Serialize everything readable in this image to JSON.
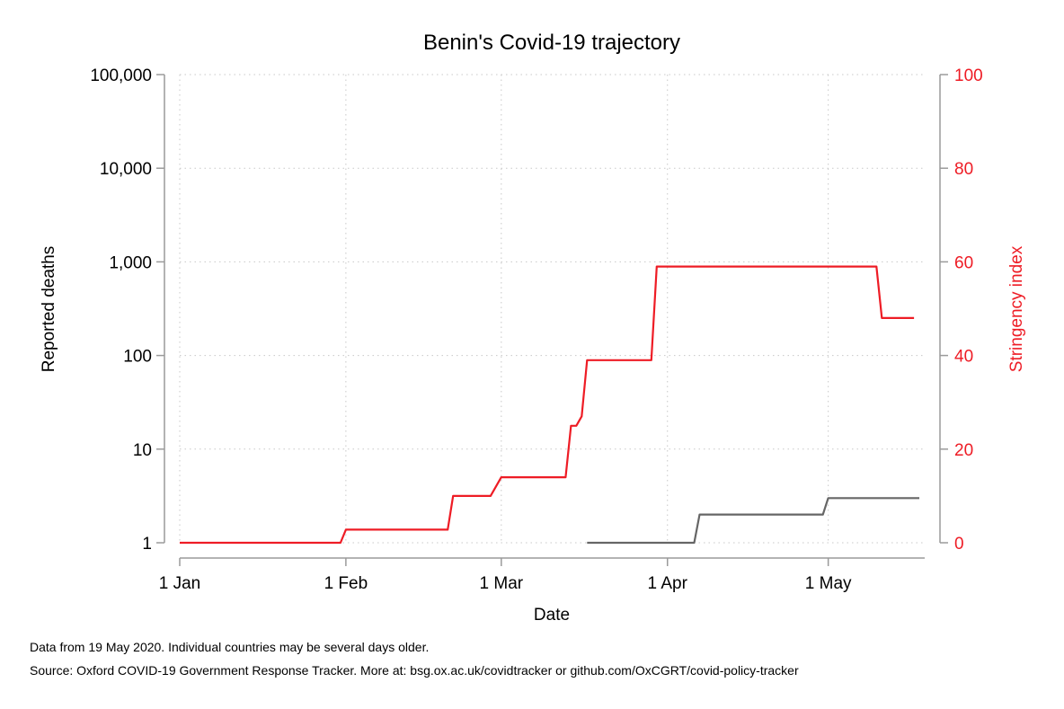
{
  "chart_data": {
    "type": "line",
    "title": "Benin's Covid-19 trajectory",
    "xlabel": "Date",
    "ylabel_left": "Reported deaths",
    "ylabel_right": "Stringency index",
    "x_ticks": [
      "1 Jan",
      "1 Feb",
      "1 Mar",
      "1 Apr",
      "1 May"
    ],
    "x_tick_dates": [
      "2020-01-01",
      "2020-02-01",
      "2020-03-01",
      "2020-04-01",
      "2020-05-01"
    ],
    "xlim": [
      "2020-01-01",
      "2020-05-19"
    ],
    "y_left_scale": "log",
    "y_left_ticks": [
      1,
      10,
      100,
      1000,
      10000,
      100000
    ],
    "y_left_tick_labels": [
      "1",
      "10",
      "100",
      "1,000",
      "10,000",
      "100,000"
    ],
    "y_left_lim": [
      1,
      100000
    ],
    "y_right_ticks": [
      0,
      20,
      40,
      60,
      80,
      100
    ],
    "y_right_tick_labels": [
      "0",
      "20",
      "40",
      "60",
      "80",
      "100"
    ],
    "y_right_lim": [
      0,
      100
    ],
    "grid": true,
    "series": [
      {
        "name": "Reported deaths",
        "axis": "left",
        "color": "#666666",
        "points": [
          {
            "date": "2020-03-17",
            "y": 1
          },
          {
            "date": "2020-04-06",
            "y": 1
          },
          {
            "date": "2020-04-07",
            "y": 2
          },
          {
            "date": "2020-04-30",
            "y": 2
          },
          {
            "date": "2020-05-01",
            "y": 3
          },
          {
            "date": "2020-05-18",
            "y": 3
          }
        ]
      },
      {
        "name": "Stringency index",
        "axis": "right",
        "color": "#ee1c25",
        "points": [
          {
            "date": "2020-01-01",
            "y": 0
          },
          {
            "date": "2020-01-31",
            "y": 0
          },
          {
            "date": "2020-02-01",
            "y": 2.8
          },
          {
            "date": "2020-02-20",
            "y": 2.8
          },
          {
            "date": "2020-02-21",
            "y": 10
          },
          {
            "date": "2020-02-28",
            "y": 10
          },
          {
            "date": "2020-03-01",
            "y": 14
          },
          {
            "date": "2020-03-13",
            "y": 14
          },
          {
            "date": "2020-03-14",
            "y": 25
          },
          {
            "date": "2020-03-15",
            "y": 25
          },
          {
            "date": "2020-03-16",
            "y": 27
          },
          {
            "date": "2020-03-17",
            "y": 39
          },
          {
            "date": "2020-03-29",
            "y": 39
          },
          {
            "date": "2020-03-30",
            "y": 59
          },
          {
            "date": "2020-05-10",
            "y": 59
          },
          {
            "date": "2020-05-11",
            "y": 48
          },
          {
            "date": "2020-05-17",
            "y": 48
          }
        ]
      }
    ]
  },
  "notes": {
    "line1": "Data from 19 May 2020. Individual countries may be several days older.",
    "line2": "Source: Oxford COVID-19 Government Response Tracker. More at: bsg.ox.ac.uk/covidtracker or github.com/OxCGRT/covid-policy-tracker"
  },
  "colors": {
    "deaths": "#666666",
    "stringency": "#ee1c25",
    "axis": "#9a9a9a"
  }
}
